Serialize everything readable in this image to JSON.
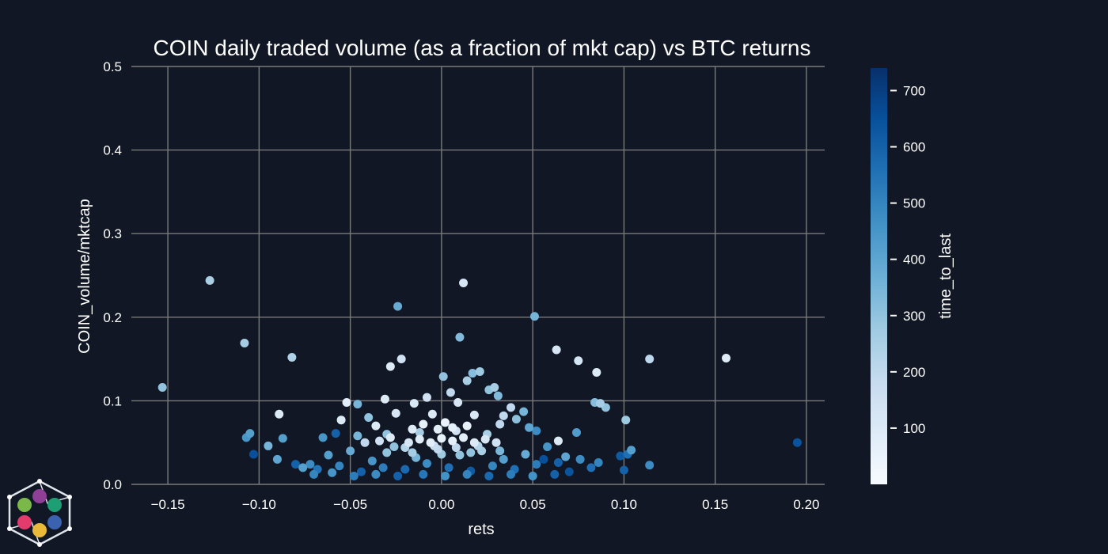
{
  "chart_data": {
    "type": "scatter",
    "title": "COIN daily traded volume (as a fraction of mkt cap) vs BTC returns",
    "xlabel": "rets",
    "ylabel": "COIN_volume/mktcap",
    "xlim": [
      -0.17,
      0.21
    ],
    "ylim": [
      0.0,
      0.5
    ],
    "x_ticks": [
      -0.15,
      -0.1,
      -0.05,
      0.0,
      0.05,
      0.1,
      0.15,
      0.2
    ],
    "x_tick_labels": [
      "−0.15",
      "−0.10",
      "−0.05",
      "0.00",
      "0.05",
      "0.10",
      "0.15",
      "0.20"
    ],
    "y_ticks": [
      0.0,
      0.1,
      0.2,
      0.3,
      0.4,
      0.5
    ],
    "y_tick_labels": [
      "0.0",
      "0.1",
      "0.2",
      "0.3",
      "0.4",
      "0.5"
    ],
    "grid": true,
    "colorbar": {
      "label": "time_to_last",
      "range": [
        0,
        740
      ],
      "ticks": [
        100,
        200,
        300,
        400,
        500,
        600,
        700
      ],
      "tick_labels": [
        "100",
        "200",
        "300",
        "400",
        "500",
        "600",
        "700"
      ],
      "colormap": "Blues",
      "colors": [
        "#f7fbff",
        "#deebf7",
        "#c6dbef",
        "#9ecae1",
        "#6baed6",
        "#4292c6",
        "#2171b5",
        "#08519c",
        "#08306b"
      ]
    },
    "points": [
      {
        "x": -0.153,
        "y": 0.116,
        "c": 300
      },
      {
        "x": -0.127,
        "y": 0.244,
        "c": 250
      },
      {
        "x": -0.108,
        "y": 0.169,
        "c": 260
      },
      {
        "x": -0.082,
        "y": 0.152,
        "c": 240
      },
      {
        "x": -0.089,
        "y": 0.084,
        "c": 100
      },
      {
        "x": -0.024,
        "y": 0.213,
        "c": 380
      },
      {
        "x": 0.012,
        "y": 0.241,
        "c": 120
      },
      {
        "x": 0.051,
        "y": 0.201,
        "c": 350
      },
      {
        "x": 0.01,
        "y": 0.176,
        "c": 330
      },
      {
        "x": -0.022,
        "y": 0.15,
        "c": 150
      },
      {
        "x": -0.028,
        "y": 0.141,
        "c": 100
      },
      {
        "x": 0.063,
        "y": 0.161,
        "c": 120
      },
      {
        "x": 0.075,
        "y": 0.148,
        "c": 130
      },
      {
        "x": 0.085,
        "y": 0.134,
        "c": 100
      },
      {
        "x": 0.114,
        "y": 0.15,
        "c": 200
      },
      {
        "x": 0.156,
        "y": 0.151,
        "c": 90
      },
      {
        "x": 0.195,
        "y": 0.05,
        "c": 640
      },
      {
        "x": 0.001,
        "y": 0.129,
        "c": 300
      },
      {
        "x": 0.017,
        "y": 0.133,
        "c": 320
      },
      {
        "x": 0.021,
        "y": 0.135,
        "c": 280
      },
      {
        "x": 0.029,
        "y": 0.116,
        "c": 260
      },
      {
        "x": 0.014,
        "y": 0.124,
        "c": 250
      },
      {
        "x": -0.008,
        "y": 0.104,
        "c": 150
      },
      {
        "x": 0.005,
        "y": 0.11,
        "c": 200
      },
      {
        "x": 0.026,
        "y": 0.113,
        "c": 300
      },
      {
        "x": 0.031,
        "y": 0.106,
        "c": 330
      },
      {
        "x": -0.052,
        "y": 0.098,
        "c": 80
      },
      {
        "x": -0.046,
        "y": 0.096,
        "c": 350
      },
      {
        "x": -0.031,
        "y": 0.102,
        "c": 100
      },
      {
        "x": -0.015,
        "y": 0.097,
        "c": 110
      },
      {
        "x": 0.009,
        "y": 0.098,
        "c": 120
      },
      {
        "x": 0.038,
        "y": 0.092,
        "c": 200
      },
      {
        "x": 0.045,
        "y": 0.087,
        "c": 350
      },
      {
        "x": 0.084,
        "y": 0.098,
        "c": 320
      },
      {
        "x": 0.087,
        "y": 0.097,
        "c": 260
      },
      {
        "x": 0.09,
        "y": 0.092,
        "c": 300
      },
      {
        "x": 0.101,
        "y": 0.077,
        "c": 280
      },
      {
        "x": -0.055,
        "y": 0.077,
        "c": 100
      },
      {
        "x": -0.04,
        "y": 0.08,
        "c": 300
      },
      {
        "x": -0.025,
        "y": 0.085,
        "c": 120
      },
      {
        "x": -0.005,
        "y": 0.084,
        "c": 100
      },
      {
        "x": 0.018,
        "y": 0.083,
        "c": 110
      },
      {
        "x": 0.034,
        "y": 0.082,
        "c": 200
      },
      {
        "x": 0.041,
        "y": 0.078,
        "c": 310
      },
      {
        "x": -0.105,
        "y": 0.061,
        "c": 420
      },
      {
        "x": -0.107,
        "y": 0.056,
        "c": 450
      },
      {
        "x": -0.095,
        "y": 0.046,
        "c": 350
      },
      {
        "x": -0.087,
        "y": 0.055,
        "c": 420
      },
      {
        "x": -0.065,
        "y": 0.056,
        "c": 450
      },
      {
        "x": -0.058,
        "y": 0.061,
        "c": 600
      },
      {
        "x": -0.046,
        "y": 0.058,
        "c": 350
      },
      {
        "x": -0.03,
        "y": 0.06,
        "c": 300
      },
      {
        "x": -0.012,
        "y": 0.062,
        "c": 260
      },
      {
        "x": 0.008,
        "y": 0.064,
        "c": 150
      },
      {
        "x": 0.025,
        "y": 0.06,
        "c": 250
      },
      {
        "x": 0.048,
        "y": 0.068,
        "c": 400
      },
      {
        "x": 0.052,
        "y": 0.064,
        "c": 480
      },
      {
        "x": 0.064,
        "y": 0.052,
        "c": 100
      },
      {
        "x": 0.074,
        "y": 0.062,
        "c": 430
      },
      {
        "x": -0.103,
        "y": 0.036,
        "c": 650
      },
      {
        "x": -0.09,
        "y": 0.03,
        "c": 400
      },
      {
        "x": -0.072,
        "y": 0.024,
        "c": 480
      },
      {
        "x": -0.068,
        "y": 0.018,
        "c": 550
      },
      {
        "x": -0.062,
        "y": 0.035,
        "c": 420
      },
      {
        "x": -0.056,
        "y": 0.022,
        "c": 500
      },
      {
        "x": -0.05,
        "y": 0.04,
        "c": 380
      },
      {
        "x": -0.044,
        "y": 0.015,
        "c": 600
      },
      {
        "x": -0.038,
        "y": 0.028,
        "c": 450
      },
      {
        "x": -0.032,
        "y": 0.02,
        "c": 520
      },
      {
        "x": -0.026,
        "y": 0.045,
        "c": 300
      },
      {
        "x": -0.02,
        "y": 0.018,
        "c": 580
      },
      {
        "x": -0.014,
        "y": 0.032,
        "c": 350
      },
      {
        "x": -0.008,
        "y": 0.025,
        "c": 480
      },
      {
        "x": -0.002,
        "y": 0.042,
        "c": 200
      },
      {
        "x": 0.004,
        "y": 0.02,
        "c": 560
      },
      {
        "x": 0.01,
        "y": 0.035,
        "c": 300
      },
      {
        "x": 0.016,
        "y": 0.016,
        "c": 620
      },
      {
        "x": 0.022,
        "y": 0.04,
        "c": 250
      },
      {
        "x": 0.028,
        "y": 0.022,
        "c": 500
      },
      {
        "x": 0.034,
        "y": 0.03,
        "c": 420
      },
      {
        "x": 0.04,
        "y": 0.018,
        "c": 560
      },
      {
        "x": 0.046,
        "y": 0.036,
        "c": 380
      },
      {
        "x": 0.052,
        "y": 0.024,
        "c": 520
      },
      {
        "x": 0.058,
        "y": 0.045,
        "c": 450
      },
      {
        "x": 0.064,
        "y": 0.026,
        "c": 600
      },
      {
        "x": 0.07,
        "y": 0.015,
        "c": 640
      },
      {
        "x": 0.076,
        "y": 0.03,
        "c": 480
      },
      {
        "x": 0.082,
        "y": 0.02,
        "c": 560
      },
      {
        "x": 0.086,
        "y": 0.026,
        "c": 500
      },
      {
        "x": 0.098,
        "y": 0.034,
        "c": 620
      },
      {
        "x": 0.1,
        "y": 0.017,
        "c": 600
      },
      {
        "x": 0.102,
        "y": 0.036,
        "c": 560
      },
      {
        "x": 0.104,
        "y": 0.041,
        "c": 420
      },
      {
        "x": 0.114,
        "y": 0.023,
        "c": 480
      },
      {
        "x": 0.068,
        "y": 0.033,
        "c": 400
      },
      {
        "x": 0.056,
        "y": 0.03,
        "c": 650
      },
      {
        "x": -0.076,
        "y": 0.02,
        "c": 420
      },
      {
        "x": -0.08,
        "y": 0.024,
        "c": 600
      },
      {
        "x": -0.07,
        "y": 0.012,
        "c": 500
      },
      {
        "x": -0.06,
        "y": 0.014,
        "c": 450
      },
      {
        "x": -0.048,
        "y": 0.01,
        "c": 520
      },
      {
        "x": -0.036,
        "y": 0.012,
        "c": 480
      },
      {
        "x": -0.024,
        "y": 0.01,
        "c": 600
      },
      {
        "x": -0.01,
        "y": 0.012,
        "c": 540
      },
      {
        "x": 0.002,
        "y": 0.01,
        "c": 460
      },
      {
        "x": 0.014,
        "y": 0.012,
        "c": 500
      },
      {
        "x": 0.026,
        "y": 0.01,
        "c": 580
      },
      {
        "x": 0.038,
        "y": 0.012,
        "c": 520
      },
      {
        "x": 0.05,
        "y": 0.01,
        "c": 460
      },
      {
        "x": 0.062,
        "y": 0.012,
        "c": 600
      },
      {
        "x": -0.042,
        "y": 0.05,
        "c": 200
      },
      {
        "x": -0.034,
        "y": 0.052,
        "c": 150
      },
      {
        "x": -0.028,
        "y": 0.056,
        "c": 100
      },
      {
        "x": -0.018,
        "y": 0.05,
        "c": 120
      },
      {
        "x": -0.012,
        "y": 0.054,
        "c": 90
      },
      {
        "x": -0.006,
        "y": 0.05,
        "c": 80
      },
      {
        "x": 0.0,
        "y": 0.055,
        "c": 60
      },
      {
        "x": 0.006,
        "y": 0.052,
        "c": 70
      },
      {
        "x": 0.012,
        "y": 0.056,
        "c": 80
      },
      {
        "x": 0.018,
        "y": 0.05,
        "c": 100
      },
      {
        "x": 0.024,
        "y": 0.054,
        "c": 120
      },
      {
        "x": 0.03,
        "y": 0.05,
        "c": 150
      },
      {
        "x": -0.02,
        "y": 0.044,
        "c": 220
      },
      {
        "x": -0.004,
        "y": 0.046,
        "c": 180
      },
      {
        "x": 0.008,
        "y": 0.044,
        "c": 200
      },
      {
        "x": 0.02,
        "y": 0.046,
        "c": 230
      },
      {
        "x": -0.01,
        "y": 0.072,
        "c": 60
      },
      {
        "x": 0.002,
        "y": 0.074,
        "c": 50
      },
      {
        "x": 0.006,
        "y": 0.068,
        "c": 70
      },
      {
        "x": -0.002,
        "y": 0.066,
        "c": 80
      },
      {
        "x": 0.014,
        "y": 0.07,
        "c": 60
      },
      {
        "x": -0.016,
        "y": 0.066,
        "c": 90
      },
      {
        "x": -0.036,
        "y": 0.07,
        "c": 100
      },
      {
        "x": 0.032,
        "y": 0.072,
        "c": 200
      },
      {
        "x": -0.03,
        "y": 0.038,
        "c": 300
      },
      {
        "x": -0.016,
        "y": 0.038,
        "c": 260
      },
      {
        "x": 0.0,
        "y": 0.036,
        "c": 280
      },
      {
        "x": 0.016,
        "y": 0.038,
        "c": 300
      },
      {
        "x": 0.032,
        "y": 0.04,
        "c": 340
      }
    ]
  }
}
